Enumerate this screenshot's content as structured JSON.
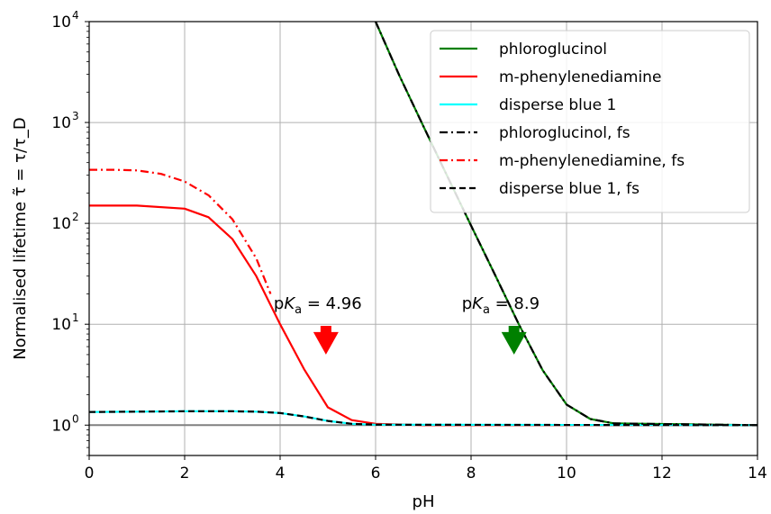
{
  "chart_data": {
    "type": "line",
    "xlabel": "pH",
    "ylabel": "Normalised lifetime τ̃ = τ/τ_D",
    "xlim": [
      0,
      14
    ],
    "ylim": [
      0.5,
      10000
    ],
    "yscale": "log",
    "grid": true,
    "legend_position": "top-right",
    "x_ticks": [
      "0",
      "2",
      "4",
      "6",
      "8",
      "10",
      "12",
      "14"
    ],
    "y_ticks": [
      {
        "value": 1,
        "base": "10",
        "exp": "0"
      },
      {
        "value": 10,
        "base": "10",
        "exp": "1"
      },
      {
        "value": 100,
        "base": "10",
        "exp": "2"
      },
      {
        "value": 1000,
        "base": "10",
        "exp": "3"
      },
      {
        "value": 10000,
        "base": "10",
        "exp": "4"
      }
    ],
    "reference_line": {
      "y": 1,
      "color": "#808080"
    },
    "series": [
      {
        "name": "phloroglucinol",
        "color": "#008000",
        "style": "solid",
        "x": [
          6.0,
          6.5,
          7.0,
          7.5,
          8.0,
          8.5,
          9.0,
          9.5,
          10.0,
          10.5,
          11.0,
          14.0
        ],
        "y": [
          10000,
          2900,
          920,
          295,
          95,
          31,
          10,
          3.5,
          1.6,
          1.15,
          1.04,
          1.0
        ]
      },
      {
        "name": "m-phenylenediamine",
        "color": "#ff0000",
        "style": "solid",
        "x": [
          0,
          1,
          2,
          2.5,
          3,
          3.5,
          4,
          4.5,
          5,
          5.5,
          6,
          7,
          14
        ],
        "y": [
          150,
          150,
          140,
          115,
          70,
          30,
          10,
          3.6,
          1.5,
          1.12,
          1.03,
          1.0,
          1.0
        ]
      },
      {
        "name": "disperse blue 1",
        "color": "#00ffff",
        "style": "solid",
        "x": [
          0,
          1,
          2,
          3,
          3.5,
          4,
          4.5,
          5,
          5.5,
          6,
          14
        ],
        "y": [
          1.35,
          1.36,
          1.37,
          1.37,
          1.36,
          1.32,
          1.22,
          1.1,
          1.03,
          1.01,
          1.0
        ]
      },
      {
        "name": "phloroglucinol, fs",
        "color": "#000000",
        "style": "dashdot",
        "x": [
          6.0,
          6.5,
          7.0,
          7.5,
          8.0,
          8.5,
          9.0,
          9.5,
          10.0,
          10.5,
          11.0,
          14.0
        ],
        "y": [
          10000,
          2900,
          920,
          295,
          95,
          31,
          10,
          3.5,
          1.6,
          1.15,
          1.04,
          1.0
        ]
      },
      {
        "name": "m-phenylenediamine, fs",
        "color": "#ff0000",
        "style": "dashdot",
        "x": [
          0,
          0.5,
          1,
          1.5,
          2,
          2.5,
          3,
          3.5,
          3.8
        ],
        "y": [
          340,
          340,
          335,
          310,
          260,
          190,
          110,
          45,
          20
        ]
      },
      {
        "name": "disperse blue 1, fs",
        "color": "#000000",
        "style": "dashed",
        "x": [
          0,
          1,
          2,
          3,
          3.5,
          4,
          4.5,
          5,
          5.5,
          6,
          14
        ],
        "y": [
          1.35,
          1.36,
          1.37,
          1.37,
          1.36,
          1.32,
          1.22,
          1.1,
          1.03,
          1.01,
          1.0
        ]
      }
    ],
    "annotations": [
      {
        "prefix": "p",
        "italic": "K",
        "sub": "a",
        "suffix": " = 4.96",
        "x": 4.96,
        "y": 5,
        "color": "#ff0000"
      },
      {
        "prefix": "p",
        "italic": "K",
        "sub": "a",
        "suffix": " = 8.9",
        "x": 8.9,
        "y": 5,
        "color": "#008000"
      }
    ]
  }
}
